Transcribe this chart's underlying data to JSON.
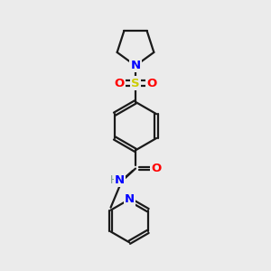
{
  "background_color": "#ebebeb",
  "bond_color": "#1a1a1a",
  "N_color": "#0000ff",
  "O_color": "#ff0000",
  "S_color": "#cccc00",
  "H_color": "#7a9c8a",
  "line_width": 1.6,
  "figsize": [
    3.0,
    3.0
  ],
  "dpi": 100,
  "xlim": [
    0,
    10
  ],
  "ylim": [
    0,
    10
  ]
}
